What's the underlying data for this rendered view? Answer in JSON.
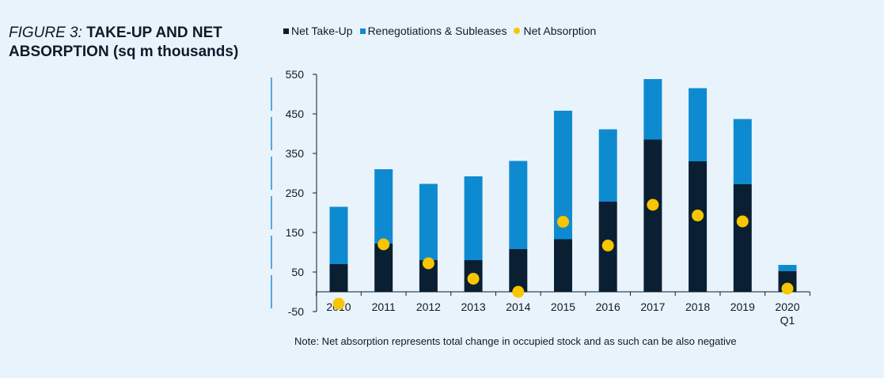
{
  "figure": {
    "number": "FIGURE 3:",
    "title_main": "TAKE-UP AND NET",
    "title_rest": "ABSORPTION (sq m thousands)"
  },
  "note": "Note: Net absorption represents total change in occupied stock and as such can be also negative",
  "colors": {
    "net_take_up": "#0b1f33",
    "renegotiations": "#0e8bd0",
    "net_absorption": "#f7c600",
    "axis": "#0d1b2a",
    "background": "#e9f3fb",
    "accent_rule": "#1f8fd6"
  },
  "chart_data": {
    "type": "bar",
    "stacked": true,
    "categories": [
      "2010",
      "2011",
      "2012",
      "2013",
      "2014",
      "2015",
      "2016",
      "2017",
      "2018",
      "2019",
      "2020 Q1"
    ],
    "ylim": [
      -50,
      550
    ],
    "yticks": [
      -50,
      50,
      150,
      250,
      350,
      450,
      550
    ],
    "ytick_labels": [
      "-50",
      "50",
      "150",
      "250",
      "350",
      "450",
      "550"
    ],
    "grid": false,
    "legend_position": "top",
    "title": "TAKE-UP AND NET ABSORPTION (sq m thousands)",
    "xlabel": "",
    "ylabel": "",
    "series": [
      {
        "name": "Net Take-Up",
        "kind": "bar",
        "values": [
          70,
          122,
          80,
          80,
          108,
          133,
          228,
          385,
          330,
          272,
          52
        ]
      },
      {
        "name": "Renegotiations & Subleases",
        "kind": "bar",
        "values": [
          145,
          188,
          193,
          212,
          223,
          325,
          183,
          153,
          185,
          165,
          16
        ]
      },
      {
        "name": "Net Absorption",
        "kind": "point",
        "values": [
          -30,
          120,
          72,
          33,
          0,
          177,
          117,
          220,
          193,
          178,
          8
        ]
      }
    ]
  }
}
